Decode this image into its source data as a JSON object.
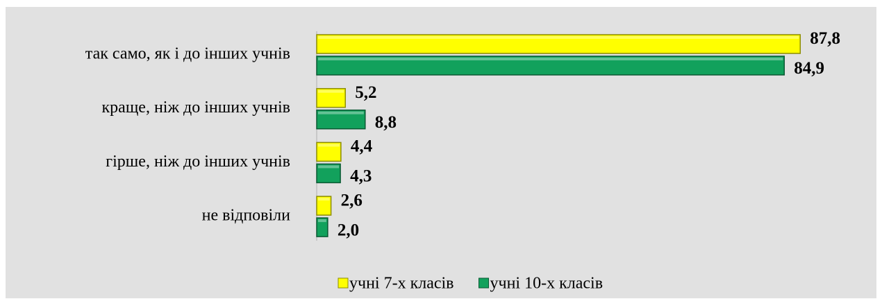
{
  "chart_data": {
    "type": "bar",
    "orientation": "horizontal",
    "categories": [
      "так само, як і до інших учнів",
      "краще, ніж до інших учнів",
      "гірше, ніж до інших учнів",
      "не відповіли"
    ],
    "series": [
      {
        "name": "учні 7-х класів",
        "color": "#ffff00",
        "values": [
          87.8,
          5.2,
          4.4,
          2.6
        ],
        "value_labels": [
          "87,8",
          "5,2",
          "4,4",
          "2,6"
        ]
      },
      {
        "name": "учні 10-х класів",
        "color": "#12a15c",
        "values": [
          84.9,
          8.8,
          4.3,
          2.0
        ],
        "value_labels": [
          "84,9",
          "8,8",
          "4,3",
          "2,0"
        ]
      }
    ],
    "legend": "bottom"
  }
}
